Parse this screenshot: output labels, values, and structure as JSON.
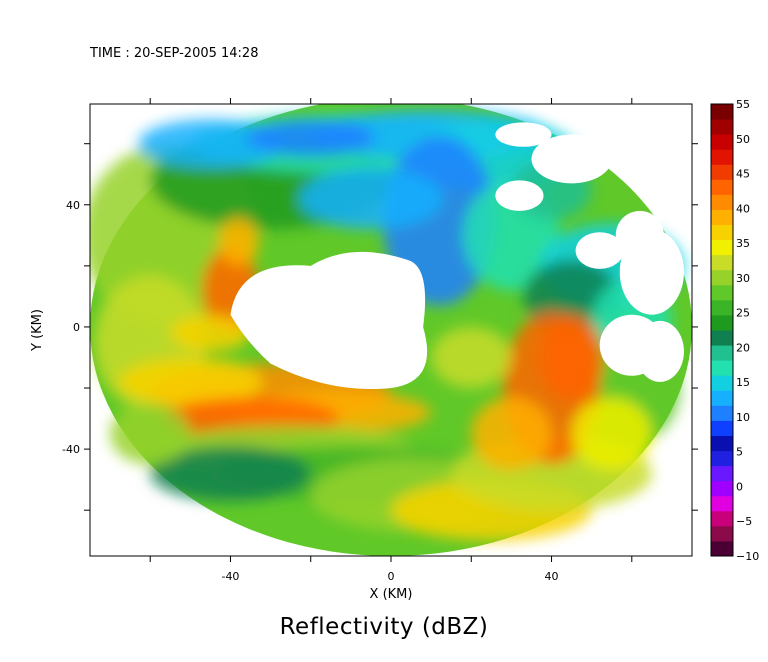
{
  "time_label": "TIME : 20-SEP-2005 14:28",
  "chart_data": {
    "type": "heatmap",
    "title": "Reflectivity (dBZ)",
    "xlabel": "X (KM)",
    "ylabel": "Y (KM)",
    "xlim": [
      -75,
      75
    ],
    "ylim": [
      -75,
      73
    ],
    "xticks": [
      -60,
      -40,
      -20,
      0,
      20,
      40,
      60
    ],
    "yticks": [
      -60,
      -40,
      -20,
      0,
      20,
      40,
      60
    ],
    "xtick_labels": {
      "-40": "-40",
      "0": "0",
      "40": "40"
    },
    "ytick_labels": {
      "-40": "-40",
      "0": "0",
      "40": "40"
    },
    "colorbar": {
      "label_values": [
        55,
        50,
        45,
        40,
        35,
        30,
        25,
        20,
        15,
        10,
        5,
        0,
        -5,
        -10
      ],
      "range": [
        -10,
        55
      ],
      "colors": [
        "#4a0033",
        "#8b0a4a",
        "#c8007a",
        "#e000e0",
        "#a000ff",
        "#6a18ff",
        "#2020e0",
        "#0a10b0",
        "#1040ff",
        "#1e80ff",
        "#16b0ff",
        "#12d0e0",
        "#22e0b0",
        "#20c090",
        "#108050",
        "#1e9a1e",
        "#3cb428",
        "#60c828",
        "#96d22a",
        "#c8dc28",
        "#f0f000",
        "#f8d200",
        "#ffb000",
        "#ff8c00",
        "#ff6400",
        "#f03c00",
        "#e01400",
        "#c80000",
        "#a00000",
        "#780000"
      ]
    },
    "domain_radius_km": 75,
    "features": [
      {
        "name": "western arc",
        "center": [
          -40,
          12
        ],
        "dbz": 43
      },
      {
        "name": "southwest band",
        "center": [
          -30,
          -25
        ],
        "dbz": 43
      },
      {
        "name": "southeast band",
        "center": [
          40,
          -20
        ],
        "dbz": 44
      },
      {
        "name": "northern ring",
        "center": [
          0,
          58
        ],
        "dbz": 12
      },
      {
        "name": "central clear region",
        "center": [
          0,
          10
        ],
        "dbz": null
      }
    ]
  }
}
